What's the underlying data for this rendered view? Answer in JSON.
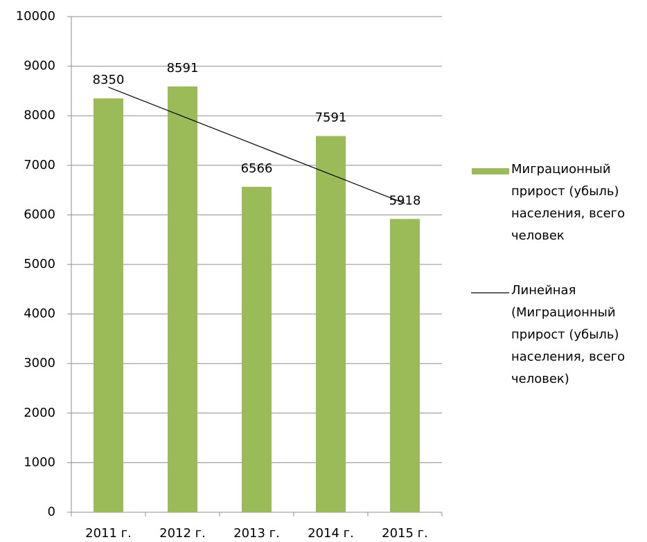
{
  "chart_data": {
    "type": "bar",
    "categories": [
      "2011 г.",
      "2012 г.",
      "2013 г.",
      "2014 г.",
      "2015 г."
    ],
    "series": [
      {
        "name": "Миграционный прирост (убыль) населения, всего человек",
        "color": "#9bbb59",
        "values": [
          8350,
          8591,
          6566,
          7591,
          5918
        ]
      },
      {
        "name": "Линейная (Миграционный прирост (убыль) населения, всего человек)",
        "type": "line",
        "color": "#000000",
        "values": [
          8576,
          7990,
          7403,
          6817,
          6230
        ]
      }
    ],
    "ylim": [
      0,
      10000
    ],
    "yticks": [
      0,
      1000,
      2000,
      3000,
      4000,
      5000,
      6000,
      7000,
      8000,
      9000,
      10000
    ],
    "grid": true,
    "legend": "right",
    "data_labels": true
  }
}
